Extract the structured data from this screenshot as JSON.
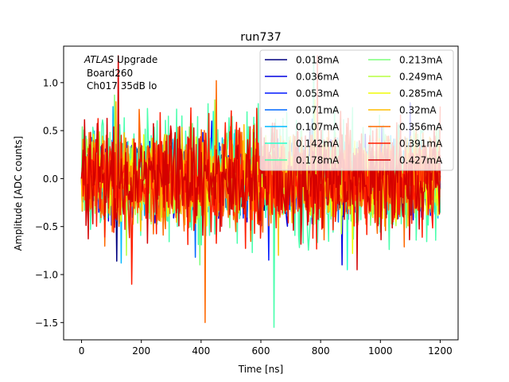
{
  "chart_data": {
    "type": "line",
    "title": "run737",
    "xlabel": "Time [ns]",
    "ylabel": "Amplitude [ADC counts]",
    "xlim": [
      -60,
      1260
    ],
    "ylim": [
      -1.68,
      1.38
    ],
    "x_ticks": [
      0,
      200,
      400,
      600,
      800,
      1000,
      1200
    ],
    "y_ticks": [
      -1.5,
      -1.0,
      -0.5,
      0.0,
      0.5,
      1.0
    ],
    "x_tick_labels": [
      "0",
      "200",
      "400",
      "600",
      "800",
      "1000",
      "1200"
    ],
    "y_tick_labels": [
      "−1.5",
      "−1.0",
      "−0.5",
      "0.0",
      "0.5",
      "1.0"
    ],
    "annotation": {
      "line1_italic": "ATLAS",
      "line1_rest": " Upgrade",
      "line2": "Board260",
      "line3": "Ch017 35dB lo"
    },
    "legend_location": "top-right",
    "legend_columns": 2,
    "x_range_ns": [
      0,
      1200
    ],
    "samples_per_trace": 480,
    "series": [
      {
        "name": "0.018mA",
        "color": "#00007f",
        "min": -0.86,
        "max": 0.55
      },
      {
        "name": "0.036mA",
        "color": "#0000e0",
        "min": -0.9,
        "max": 0.79
      },
      {
        "name": "0.053mA",
        "color": "#0018ff",
        "min": -0.85,
        "max": 0.6
      },
      {
        "name": "0.071mA",
        "color": "#0068ff",
        "min": -0.82,
        "max": 0.62
      },
      {
        "name": "0.107mA",
        "color": "#00b8ff",
        "min": -0.88,
        "max": 0.75
      },
      {
        "name": "0.142mA",
        "color": "#29ffce",
        "min": -0.95,
        "max": 0.7
      },
      {
        "name": "0.178mA",
        "color": "#4affad",
        "min": -1.55,
        "max": 1.28
      },
      {
        "name": "0.213mA",
        "color": "#7dff7a",
        "min": -0.9,
        "max": 0.87
      },
      {
        "name": "0.249mA",
        "color": "#b7ff40",
        "min": -0.8,
        "max": 0.82
      },
      {
        "name": "0.285mA",
        "color": "#f1fc06",
        "min": -0.78,
        "max": 0.82
      },
      {
        "name": "0.32mA",
        "color": "#ffbe00",
        "min": -0.8,
        "max": 0.8
      },
      {
        "name": "0.356mA",
        "color": "#ff6800",
        "min": -1.5,
        "max": 1.02
      },
      {
        "name": "0.391mA",
        "color": "#ff1d00",
        "min": -1.1,
        "max": 1.28
      },
      {
        "name": "0.427mA",
        "color": "#d40000",
        "min": -0.95,
        "max": 1.28
      }
    ]
  }
}
